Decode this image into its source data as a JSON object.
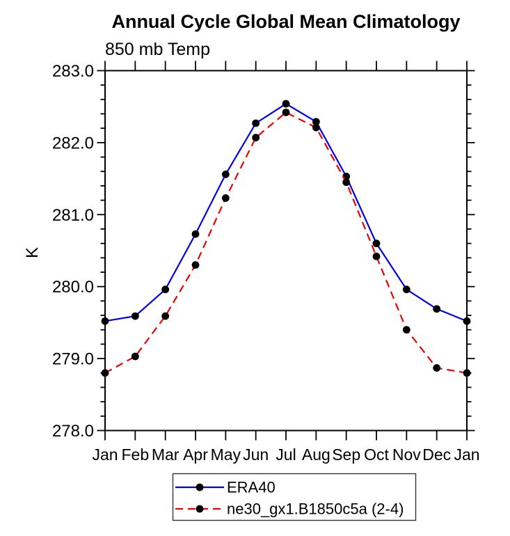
{
  "chart_data": {
    "type": "line",
    "title": "Annual Cycle Global Mean Climatology",
    "subtitle": "850 mb Temp",
    "xlabel": "",
    "ylabel": "K",
    "x": [
      "Jan",
      "Feb",
      "Mar",
      "Apr",
      "May",
      "Jun",
      "Jul",
      "Aug",
      "Sep",
      "Oct",
      "Nov",
      "Dec",
      "Jan"
    ],
    "series": [
      {
        "name": "ERA40",
        "color": "#0000ee",
        "line_style": "solid",
        "marker": "circle",
        "marker_color": "#000000",
        "values": [
          279.52,
          279.59,
          279.96,
          280.73,
          281.56,
          282.27,
          282.54,
          282.29,
          281.53,
          280.6,
          279.96,
          279.69,
          279.52
        ]
      },
      {
        "name": "ne30_gx1.B1850c5a (2-4)",
        "color": "#ee0000",
        "line_style": "dashed",
        "marker": "circle",
        "marker_color": "#000000",
        "values": [
          278.8,
          279.03,
          279.59,
          280.3,
          281.23,
          282.07,
          282.42,
          282.21,
          281.45,
          280.42,
          279.4,
          278.87,
          278.8
        ]
      }
    ],
    "ylim": [
      278.0,
      283.0
    ],
    "ytick_step": 1.0,
    "ytick_minor_step": 0.2,
    "ytick_labels": [
      "278.0",
      "279.0",
      "280.0",
      "281.0",
      "282.0",
      "283.0"
    ],
    "grid": false,
    "axis_color": "#000000",
    "legend_position": "bottom-center"
  }
}
